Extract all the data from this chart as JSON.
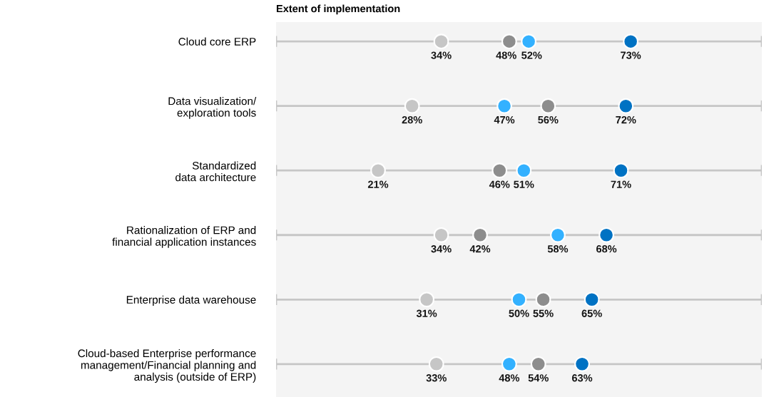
{
  "chart_data": {
    "type": "scatter",
    "orientation": "horizontal",
    "title": "Extent of implementation",
    "categories": [
      "Cloud core ERP",
      "Data visualization/\nexploration tools",
      "Standardized\ndata architecture",
      "Rationalization of ERP and\nfinancial application instances",
      "Enterprise data warehouse",
      "Cloud-based Enterprise performance\nmanagement/Financial planning and\nanalysis (outside of ERP)"
    ],
    "series": [
      {
        "color": "#c6c6c6",
        "values": [
          34,
          28,
          21,
          34,
          31,
          33
        ],
        "value_labels": [
          "34%",
          "28%",
          "21%",
          "34%",
          "31%",
          "33%"
        ]
      },
      {
        "color": "#8d8d8d",
        "values": [
          48,
          56,
          46,
          42,
          55,
          54
        ],
        "value_labels": [
          "48%",
          "56%",
          "46%",
          "42%",
          "55%",
          "54%"
        ]
      },
      {
        "color": "#33b1ff",
        "values": [
          52,
          47,
          51,
          58,
          50,
          48
        ],
        "value_labels": [
          "52%",
          "47%",
          "51%",
          "58%",
          "50%",
          "48%"
        ]
      },
      {
        "color": "#0072c3",
        "values": [
          73,
          72,
          71,
          68,
          65,
          63
        ],
        "value_labels": [
          "73%",
          "72%",
          "71%",
          "68%",
          "65%",
          "63%"
        ]
      }
    ],
    "xlim": [
      0,
      100
    ],
    "grid": "y",
    "tick_labels": "y",
    "marker": "circle"
  }
}
